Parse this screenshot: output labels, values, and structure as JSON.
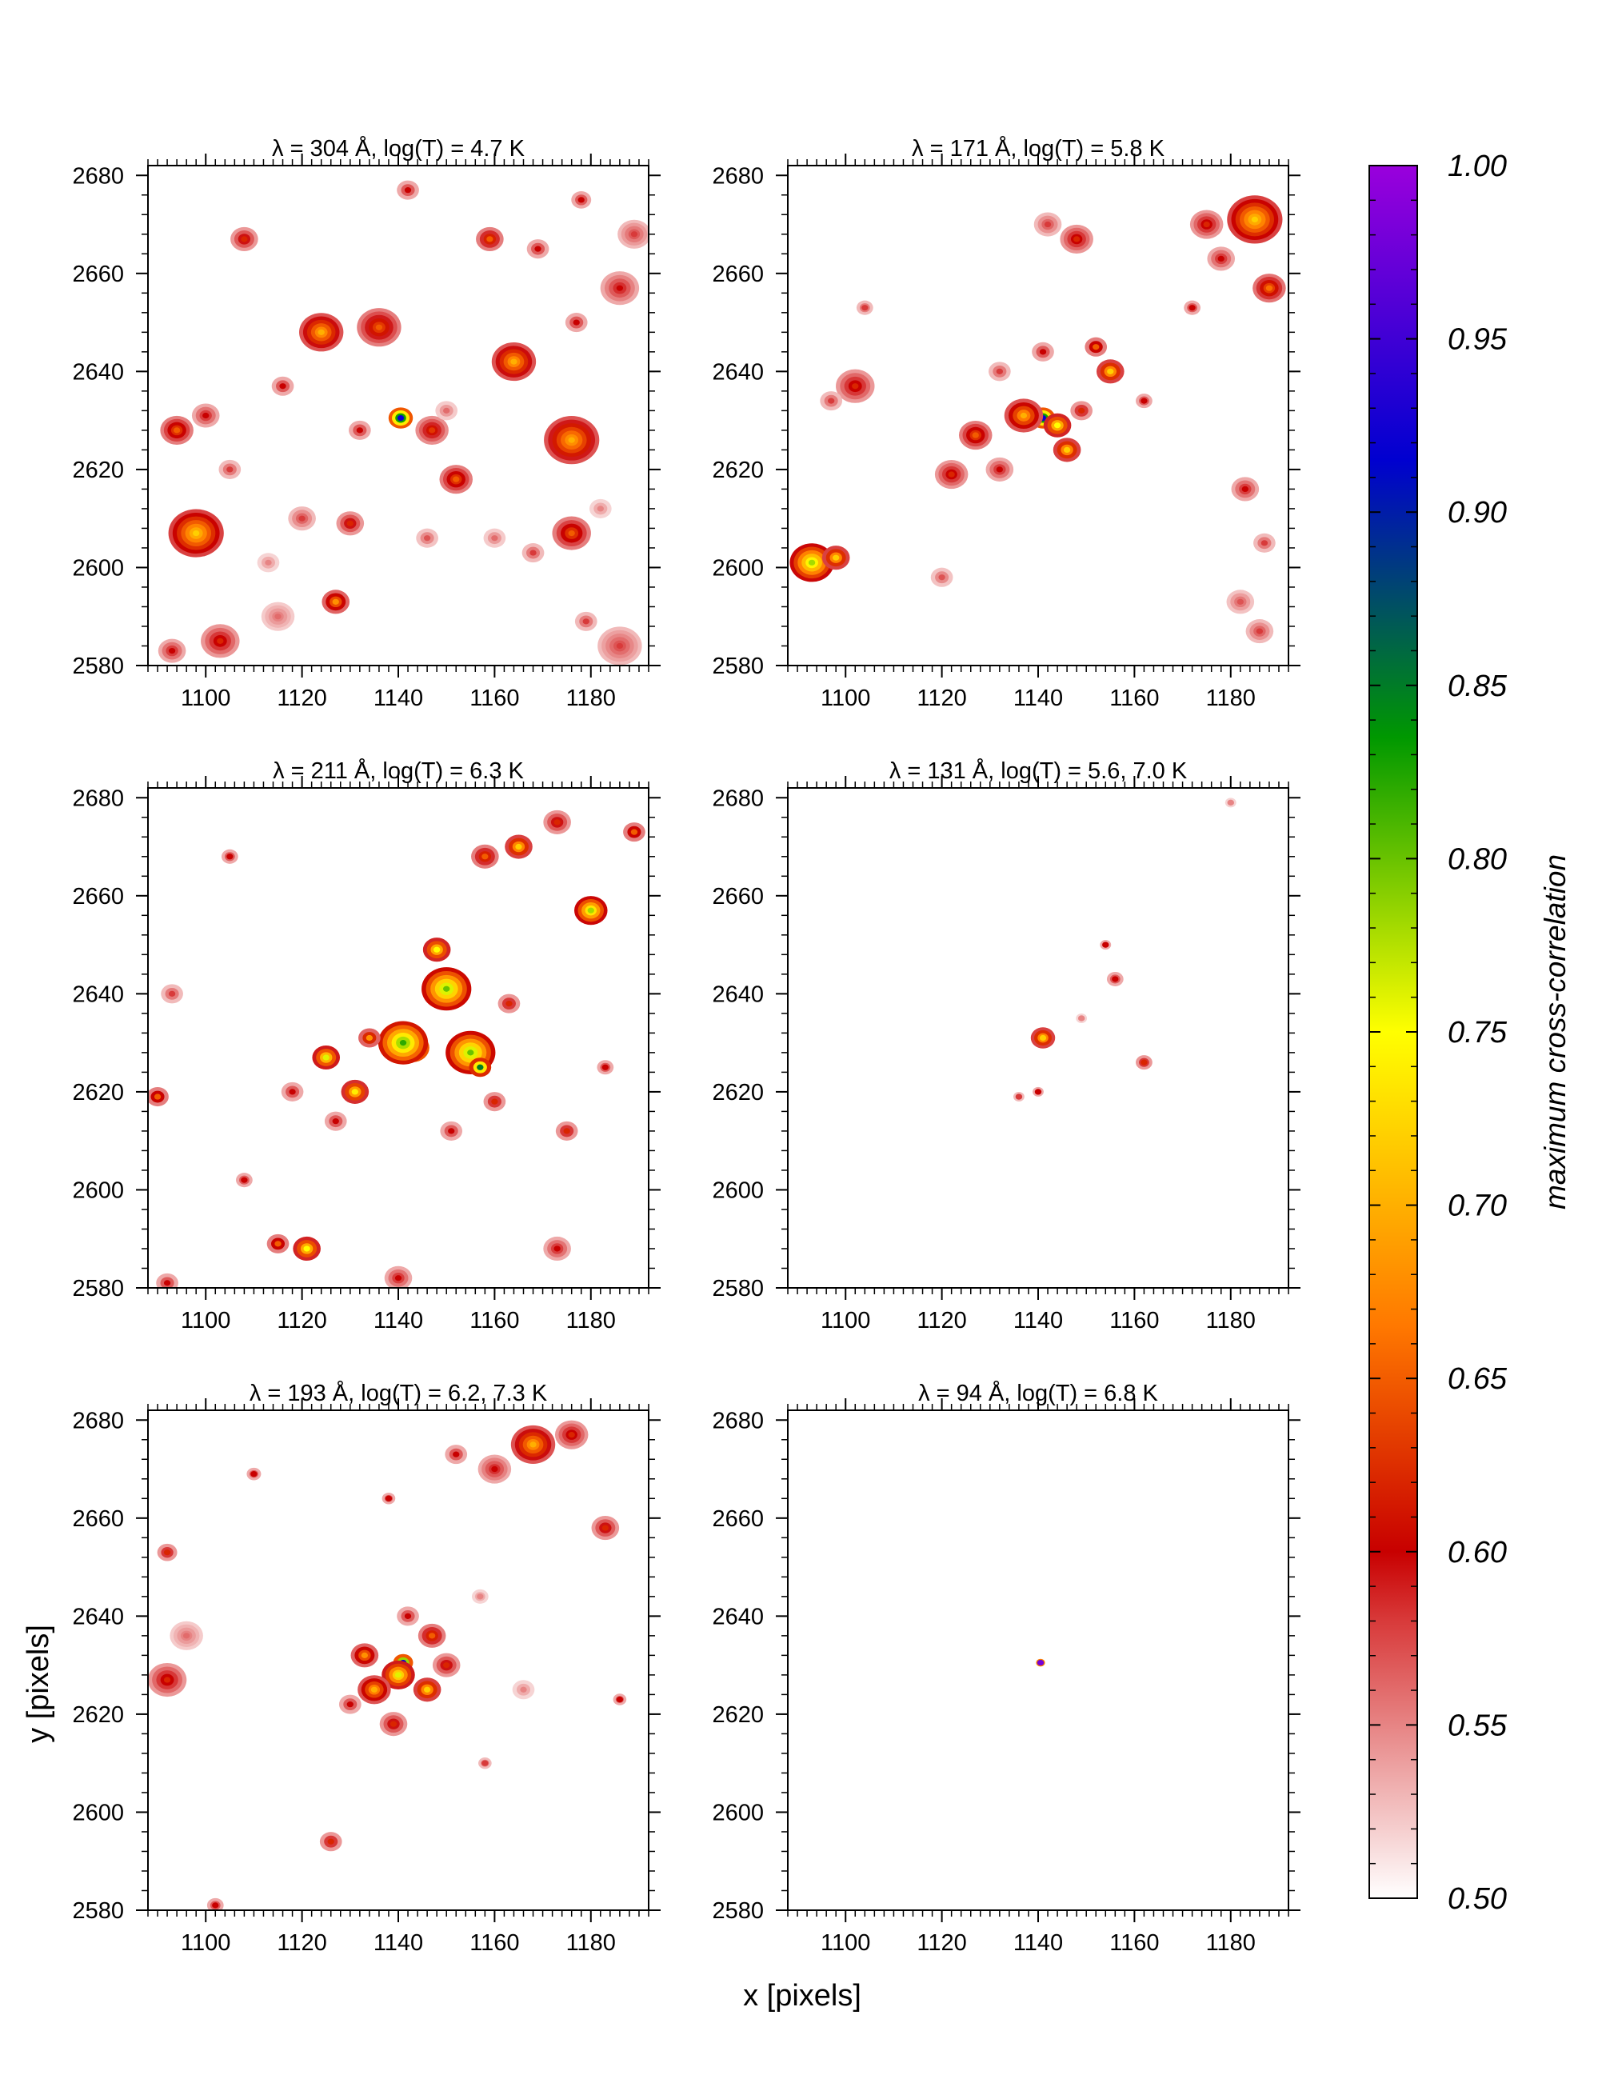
{
  "figure": {
    "xlabel": "x [pixels]",
    "ylabel": "y [pixels]"
  },
  "colorbar": {
    "label": "maximum cross-correlation",
    "min": 0.5,
    "max": 1.0,
    "ticks": [
      "0.50",
      "0.55",
      "0.60",
      "0.65",
      "0.70",
      "0.75",
      "0.80",
      "0.85",
      "0.90",
      "0.95",
      "1.00"
    ],
    "colormap": [
      "#ffffff",
      "#d83a3a",
      "#c80000",
      "#ff7800",
      "#ffff00",
      "#009800",
      "#0000d0",
      "#9a00dc"
    ]
  },
  "chart_data": [
    {
      "type": "heatmap",
      "title": "λ = 304 Å, log(T) = 4.7 K",
      "xlabel": "",
      "ylabel": "",
      "xlim": [
        1088,
        1192
      ],
      "ylim": [
        2580,
        2682
      ],
      "xticks": [
        1100,
        1120,
        1140,
        1160,
        1180
      ],
      "yticks": [
        2580,
        2600,
        2620,
        2640,
        2660,
        2680
      ],
      "blobs": [
        {
          "x": 1140.5,
          "y": 2630.5,
          "r": 2.2,
          "v": 0.92
        },
        {
          "x": 1098,
          "y": 2607,
          "r": 5,
          "v": 0.72
        },
        {
          "x": 1094,
          "y": 2628,
          "r": 3,
          "v": 0.65
        },
        {
          "x": 1100,
          "y": 2631,
          "r": 2.5,
          "v": 0.6
        },
        {
          "x": 1108,
          "y": 2667,
          "r": 2.5,
          "v": 0.62
        },
        {
          "x": 1116,
          "y": 2637,
          "r": 2,
          "v": 0.6
        },
        {
          "x": 1124,
          "y": 2648,
          "r": 4,
          "v": 0.7
        },
        {
          "x": 1136,
          "y": 2649,
          "r": 4,
          "v": 0.65
        },
        {
          "x": 1132,
          "y": 2628,
          "r": 2,
          "v": 0.6
        },
        {
          "x": 1147,
          "y": 2628,
          "r": 3,
          "v": 0.63
        },
        {
          "x": 1152,
          "y": 2618,
          "r": 3,
          "v": 0.65
        },
        {
          "x": 1159,
          "y": 2667,
          "r": 2.5,
          "v": 0.65
        },
        {
          "x": 1164,
          "y": 2642,
          "r": 4,
          "v": 0.7
        },
        {
          "x": 1169,
          "y": 2665,
          "r": 2,
          "v": 0.6
        },
        {
          "x": 1176,
          "y": 2626,
          "r": 5,
          "v": 0.7
        },
        {
          "x": 1177,
          "y": 2650,
          "r": 2,
          "v": 0.6
        },
        {
          "x": 1186,
          "y": 2657,
          "r": 3.5,
          "v": 0.6
        },
        {
          "x": 1189,
          "y": 2668,
          "r": 3,
          "v": 0.58
        },
        {
          "x": 1179,
          "y": 2589,
          "r": 2,
          "v": 0.58
        },
        {
          "x": 1103,
          "y": 2585,
          "r": 3.5,
          "v": 0.62
        },
        {
          "x": 1115,
          "y": 2590,
          "r": 3,
          "v": 0.56
        },
        {
          "x": 1127,
          "y": 2593,
          "r": 2.5,
          "v": 0.68
        },
        {
          "x": 1093,
          "y": 2583,
          "r": 2.5,
          "v": 0.6
        },
        {
          "x": 1176,
          "y": 2607,
          "r": 3.5,
          "v": 0.65
        },
        {
          "x": 1168,
          "y": 2603,
          "r": 2,
          "v": 0.58
        },
        {
          "x": 1160,
          "y": 2606,
          "r": 2,
          "v": 0.56
        },
        {
          "x": 1186,
          "y": 2584,
          "r": 4,
          "v": 0.58
        },
        {
          "x": 1130,
          "y": 2609,
          "r": 2.5,
          "v": 0.62
        },
        {
          "x": 1120,
          "y": 2610,
          "r": 2.5,
          "v": 0.58
        },
        {
          "x": 1105,
          "y": 2620,
          "r": 2,
          "v": 0.58
        },
        {
          "x": 1150,
          "y": 2632,
          "r": 2,
          "v": 0.56
        },
        {
          "x": 1178,
          "y": 2675,
          "r": 1.8,
          "v": 0.6
        },
        {
          "x": 1142,
          "y": 2677,
          "r": 2,
          "v": 0.6
        },
        {
          "x": 1113,
          "y": 2601,
          "r": 2,
          "v": 0.55
        },
        {
          "x": 1146,
          "y": 2606,
          "r": 2,
          "v": 0.57
        },
        {
          "x": 1182,
          "y": 2612,
          "r": 2,
          "v": 0.55
        }
      ]
    },
    {
      "type": "heatmap",
      "title": "λ = 171 Å, log(T) = 5.8 K",
      "xlabel": "",
      "ylabel": "",
      "xlim": [
        1088,
        1192
      ],
      "ylim": [
        2580,
        2682
      ],
      "xticks": [
        1100,
        1120,
        1140,
        1160,
        1180
      ],
      "yticks": [
        2580,
        2600,
        2620,
        2640,
        2660,
        2680
      ],
      "blobs": [
        {
          "x": 1141,
          "y": 2630.5,
          "r": 2.2,
          "v": 0.92
        },
        {
          "x": 1144,
          "y": 2629,
          "r": 2.5,
          "v": 0.75
        },
        {
          "x": 1137,
          "y": 2631,
          "r": 3.5,
          "v": 0.7
        },
        {
          "x": 1146,
          "y": 2624,
          "r": 2.5,
          "v": 0.72
        },
        {
          "x": 1093,
          "y": 2601,
          "r": 4,
          "v": 0.78
        },
        {
          "x": 1098,
          "y": 2602,
          "r": 2.5,
          "v": 0.72
        },
        {
          "x": 1102,
          "y": 2637,
          "r": 3.5,
          "v": 0.62
        },
        {
          "x": 1097,
          "y": 2634,
          "r": 2,
          "v": 0.58
        },
        {
          "x": 1185,
          "y": 2671,
          "r": 5,
          "v": 0.72
        },
        {
          "x": 1188,
          "y": 2657,
          "r": 3,
          "v": 0.66
        },
        {
          "x": 1175,
          "y": 2670,
          "r": 3,
          "v": 0.62
        },
        {
          "x": 1178,
          "y": 2663,
          "r": 2.5,
          "v": 0.6
        },
        {
          "x": 1155,
          "y": 2640,
          "r": 2.5,
          "v": 0.72
        },
        {
          "x": 1152,
          "y": 2645,
          "r": 2,
          "v": 0.65
        },
        {
          "x": 1149,
          "y": 2632,
          "r": 2,
          "v": 0.62
        },
        {
          "x": 1127,
          "y": 2627,
          "r": 3,
          "v": 0.65
        },
        {
          "x": 1122,
          "y": 2619,
          "r": 3,
          "v": 0.62
        },
        {
          "x": 1132,
          "y": 2620,
          "r": 2.5,
          "v": 0.6
        },
        {
          "x": 1148,
          "y": 2667,
          "r": 3,
          "v": 0.62
        },
        {
          "x": 1142,
          "y": 2670,
          "r": 2.5,
          "v": 0.58
        },
        {
          "x": 1186,
          "y": 2587,
          "r": 2.5,
          "v": 0.58
        },
        {
          "x": 1182,
          "y": 2593,
          "r": 2.5,
          "v": 0.57
        },
        {
          "x": 1183,
          "y": 2616,
          "r": 2.5,
          "v": 0.6
        },
        {
          "x": 1187,
          "y": 2605,
          "r": 2,
          "v": 0.58
        },
        {
          "x": 1120,
          "y": 2598,
          "r": 2,
          "v": 0.57
        },
        {
          "x": 1132,
          "y": 2640,
          "r": 2,
          "v": 0.58
        },
        {
          "x": 1141,
          "y": 2644,
          "r": 2,
          "v": 0.6
        },
        {
          "x": 1162,
          "y": 2634,
          "r": 1.5,
          "v": 0.6
        },
        {
          "x": 1172,
          "y": 2653,
          "r": 1.5,
          "v": 0.6
        },
        {
          "x": 1104,
          "y": 2653,
          "r": 1.5,
          "v": 0.58
        }
      ]
    },
    {
      "type": "heatmap",
      "title": "λ = 211 Å, log(T) = 6.3 K",
      "xlabel": "",
      "ylabel": "",
      "xlim": [
        1088,
        1192
      ],
      "ylim": [
        2580,
        2682
      ],
      "xticks": [
        1100,
        1120,
        1140,
        1160,
        1180
      ],
      "yticks": [
        2580,
        2600,
        2620,
        2640,
        2660,
        2680
      ],
      "blobs": [
        {
          "x": 1143,
          "y": 2629,
          "r": 3,
          "v": 0.92
        },
        {
          "x": 1141,
          "y": 2630,
          "r": 4.5,
          "v": 0.82
        },
        {
          "x": 1150,
          "y": 2641,
          "r": 4.5,
          "v": 0.8
        },
        {
          "x": 1155,
          "y": 2628,
          "r": 4.5,
          "v": 0.8
        },
        {
          "x": 1157,
          "y": 2625,
          "r": 2,
          "v": 0.85
        },
        {
          "x": 1148,
          "y": 2649,
          "r": 2.5,
          "v": 0.75
        },
        {
          "x": 1180,
          "y": 2657,
          "r": 3,
          "v": 0.78
        },
        {
          "x": 1125,
          "y": 2627,
          "r": 2.5,
          "v": 0.76
        },
        {
          "x": 1131,
          "y": 2620,
          "r": 2.5,
          "v": 0.74
        },
        {
          "x": 1134,
          "y": 2631,
          "r": 2,
          "v": 0.68
        },
        {
          "x": 1121,
          "y": 2588,
          "r": 2.5,
          "v": 0.75
        },
        {
          "x": 1115,
          "y": 2589,
          "r": 2,
          "v": 0.65
        },
        {
          "x": 1165,
          "y": 2670,
          "r": 2.5,
          "v": 0.72
        },
        {
          "x": 1158,
          "y": 2668,
          "r": 2.5,
          "v": 0.65
        },
        {
          "x": 1173,
          "y": 2675,
          "r": 2.5,
          "v": 0.62
        },
        {
          "x": 1189,
          "y": 2673,
          "r": 2,
          "v": 0.65
        },
        {
          "x": 1163,
          "y": 2638,
          "r": 2,
          "v": 0.62
        },
        {
          "x": 1175,
          "y": 2612,
          "r": 2,
          "v": 0.62
        },
        {
          "x": 1090,
          "y": 2619,
          "r": 2,
          "v": 0.65
        },
        {
          "x": 1173,
          "y": 2588,
          "r": 2.5,
          "v": 0.6
        },
        {
          "x": 1140,
          "y": 2582,
          "r": 2.5,
          "v": 0.6
        },
        {
          "x": 1092,
          "y": 2581,
          "r": 2,
          "v": 0.6
        },
        {
          "x": 1127,
          "y": 2614,
          "r": 2,
          "v": 0.6
        },
        {
          "x": 1151,
          "y": 2612,
          "r": 2,
          "v": 0.6
        },
        {
          "x": 1160,
          "y": 2618,
          "r": 2,
          "v": 0.62
        },
        {
          "x": 1118,
          "y": 2620,
          "r": 2,
          "v": 0.6
        },
        {
          "x": 1108,
          "y": 2602,
          "r": 1.5,
          "v": 0.6
        },
        {
          "x": 1105,
          "y": 2668,
          "r": 1.5,
          "v": 0.6
        },
        {
          "x": 1183,
          "y": 2625,
          "r": 1.5,
          "v": 0.6
        },
        {
          "x": 1093,
          "y": 2640,
          "r": 2,
          "v": 0.58
        }
      ]
    },
    {
      "type": "heatmap",
      "title": "λ = 131 Å, log(T) = 5.6, 7.0 K",
      "xlabel": "",
      "ylabel": "",
      "xlim": [
        1088,
        1192
      ],
      "ylim": [
        2580,
        2682
      ],
      "xticks": [
        1100,
        1120,
        1140,
        1160,
        1180
      ],
      "yticks": [
        2580,
        2600,
        2620,
        2640,
        2660,
        2680
      ],
      "blobs": [
        {
          "x": 1140.5,
          "y": 2631,
          "r": 1.5,
          "v": 0.9
        },
        {
          "x": 1141,
          "y": 2631,
          "r": 2.2,
          "v": 0.72
        },
        {
          "x": 1162,
          "y": 2626,
          "r": 1.5,
          "v": 0.62
        },
        {
          "x": 1156,
          "y": 2643,
          "r": 1.5,
          "v": 0.6
        },
        {
          "x": 1154,
          "y": 2650,
          "r": 1,
          "v": 0.6
        },
        {
          "x": 1140,
          "y": 2620,
          "r": 1,
          "v": 0.6
        },
        {
          "x": 1136,
          "y": 2619,
          "r": 1,
          "v": 0.58
        },
        {
          "x": 1149,
          "y": 2635,
          "r": 1,
          "v": 0.55
        },
        {
          "x": 1180,
          "y": 2679,
          "r": 1,
          "v": 0.55
        }
      ]
    },
    {
      "type": "heatmap",
      "title": "λ = 193 Å, log(T) = 6.2, 7.3 K",
      "xlabel": "",
      "ylabel": "",
      "xlim": [
        1088,
        1192
      ],
      "ylim": [
        2580,
        2682
      ],
      "xticks": [
        1100,
        1120,
        1140,
        1160,
        1180
      ],
      "yticks": [
        2580,
        2600,
        2620,
        2640,
        2660,
        2680
      ],
      "blobs": [
        {
          "x": 1141,
          "y": 2630.5,
          "r": 1.8,
          "v": 0.92
        },
        {
          "x": 1140,
          "y": 2628,
          "r": 3,
          "v": 0.76
        },
        {
          "x": 1135,
          "y": 2625,
          "r": 3,
          "v": 0.7
        },
        {
          "x": 1146,
          "y": 2625,
          "r": 2.5,
          "v": 0.72
        },
        {
          "x": 1133,
          "y": 2632,
          "r": 2.5,
          "v": 0.68
        },
        {
          "x": 1147,
          "y": 2636,
          "r": 2.5,
          "v": 0.65
        },
        {
          "x": 1150,
          "y": 2630,
          "r": 2.5,
          "v": 0.62
        },
        {
          "x": 1139,
          "y": 2618,
          "r": 2.5,
          "v": 0.62
        },
        {
          "x": 1130,
          "y": 2622,
          "r": 2,
          "v": 0.6
        },
        {
          "x": 1142,
          "y": 2640,
          "r": 2,
          "v": 0.6
        },
        {
          "x": 1092,
          "y": 2627,
          "r": 3.5,
          "v": 0.62
        },
        {
          "x": 1096,
          "y": 2636,
          "r": 3,
          "v": 0.56
        },
        {
          "x": 1092,
          "y": 2653,
          "r": 1.8,
          "v": 0.62
        },
        {
          "x": 1168,
          "y": 2675,
          "r": 4,
          "v": 0.7
        },
        {
          "x": 1176,
          "y": 2677,
          "r": 3,
          "v": 0.62
        },
        {
          "x": 1160,
          "y": 2670,
          "r": 3,
          "v": 0.6
        },
        {
          "x": 1152,
          "y": 2673,
          "r": 2,
          "v": 0.6
        },
        {
          "x": 1183,
          "y": 2658,
          "r": 2.5,
          "v": 0.62
        },
        {
          "x": 1126,
          "y": 2594,
          "r": 2,
          "v": 0.62
        },
        {
          "x": 1166,
          "y": 2625,
          "r": 2,
          "v": 0.55
        },
        {
          "x": 1157,
          "y": 2644,
          "r": 1.5,
          "v": 0.55
        },
        {
          "x": 1102,
          "y": 2581,
          "r": 1.5,
          "v": 0.6
        },
        {
          "x": 1110,
          "y": 2669,
          "r": 1.3,
          "v": 0.6
        },
        {
          "x": 1158,
          "y": 2610,
          "r": 1.2,
          "v": 0.58
        },
        {
          "x": 1138,
          "y": 2664,
          "r": 1.2,
          "v": 0.6
        },
        {
          "x": 1186,
          "y": 2623,
          "r": 1.2,
          "v": 0.6
        }
      ]
    },
    {
      "type": "heatmap",
      "title": "λ = 94 Å, log(T) = 6.8 K",
      "xlabel": "",
      "ylabel": "",
      "xlim": [
        1088,
        1192
      ],
      "ylim": [
        2580,
        2682
      ],
      "xticks": [
        1100,
        1120,
        1140,
        1160,
        1180
      ],
      "yticks": [
        2580,
        2600,
        2620,
        2640,
        2660,
        2680
      ],
      "blobs": [
        {
          "x": 1140.5,
          "y": 2630.5,
          "r": 0.8,
          "v": 0.98
        }
      ]
    }
  ]
}
